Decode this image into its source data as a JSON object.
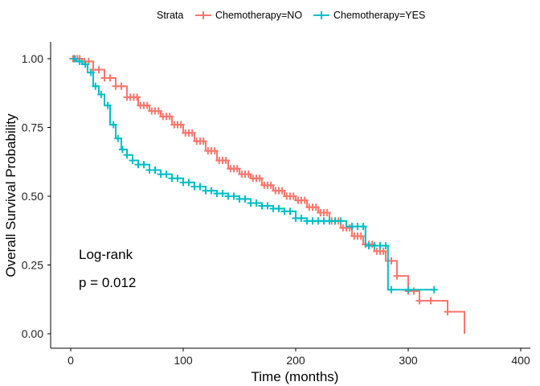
{
  "chart_data": {
    "type": "line",
    "subtype": "kaplan-meier step curve",
    "xlabel": "Time (months)",
    "ylabel": "Overall Survival Probability",
    "xlim": [
      0,
      420
    ],
    "ylim": [
      0,
      1.0
    ],
    "x_ticks": [
      "0",
      "100",
      "200",
      "300",
      "400"
    ],
    "x_tick_values": [
      0,
      100,
      200,
      300,
      400
    ],
    "y_ticks": [
      "0.00",
      "0.25",
      "0.50",
      "0.75",
      "1.00"
    ],
    "y_tick_values": [
      0,
      0.25,
      0.5,
      0.75,
      1.0
    ],
    "grid": false,
    "legend": {
      "title": "Strata",
      "placement": "top",
      "entries": [
        "Chemotherapy=NO",
        "Chemotherapy=YES"
      ]
    },
    "annotations": [
      "Log-rank",
      "p = 0.012"
    ],
    "series": [
      {
        "name": "Chemotherapy=NO",
        "color": "#F8766D",
        "x": [
          0,
          10,
          20,
          30,
          40,
          50,
          60,
          70,
          80,
          90,
          100,
          110,
          120,
          130,
          140,
          150,
          160,
          170,
          180,
          190,
          200,
          210,
          220,
          230,
          240,
          250,
          260,
          270,
          280,
          290,
          300,
          310,
          320,
          335,
          350
        ],
        "y": [
          1.0,
          0.99,
          0.96,
          0.93,
          0.9,
          0.86,
          0.83,
          0.81,
          0.79,
          0.76,
          0.73,
          0.7,
          0.665,
          0.63,
          0.6,
          0.58,
          0.565,
          0.54,
          0.52,
          0.5,
          0.485,
          0.46,
          0.44,
          0.41,
          0.385,
          0.355,
          0.325,
          0.3,
          0.265,
          0.21,
          0.155,
          0.12,
          0.12,
          0.08,
          0.0
        ],
        "censor_x": [
          2,
          4,
          6,
          8,
          12,
          16,
          20,
          25,
          30,
          35,
          40,
          45,
          50,
          53,
          56,
          59,
          62,
          65,
          68,
          72,
          75,
          78,
          82,
          85,
          88,
          92,
          95,
          98,
          102,
          105,
          108,
          112,
          115,
          118,
          122,
          125,
          128,
          132,
          135,
          138,
          142,
          145,
          148,
          152,
          155,
          158,
          162,
          165,
          168,
          172,
          175,
          178,
          182,
          185,
          188,
          192,
          195,
          198,
          202,
          205,
          208,
          212,
          215,
          218,
          222,
          225,
          228,
          232,
          235,
          238,
          242,
          245,
          248,
          252,
          255,
          258,
          262,
          265,
          268,
          272,
          275,
          278,
          285,
          290,
          300,
          305,
          310,
          320,
          335
        ]
      },
      {
        "name": "Chemotherapy=YES",
        "color": "#00BFC4",
        "x": [
          0,
          5,
          10,
          15,
          20,
          25,
          30,
          35,
          40,
          45,
          50,
          55,
          60,
          70,
          80,
          90,
          100,
          110,
          120,
          130,
          140,
          150,
          160,
          170,
          180,
          190,
          200,
          210,
          220,
          240,
          245,
          262,
          282,
          300,
          323
        ],
        "y": [
          1.0,
          0.99,
          0.98,
          0.95,
          0.9,
          0.87,
          0.83,
          0.76,
          0.71,
          0.67,
          0.65,
          0.63,
          0.615,
          0.595,
          0.58,
          0.565,
          0.55,
          0.535,
          0.52,
          0.51,
          0.5,
          0.49,
          0.475,
          0.465,
          0.455,
          0.445,
          0.42,
          0.41,
          0.41,
          0.41,
          0.39,
          0.32,
          0.16,
          0.16,
          0.16
        ],
        "censor_x": [
          3,
          8,
          13,
          18,
          22,
          27,
          33,
          38,
          42,
          46,
          50,
          55,
          60,
          65,
          70,
          75,
          80,
          85,
          90,
          95,
          100,
          105,
          110,
          115,
          120,
          125,
          130,
          135,
          140,
          145,
          150,
          155,
          160,
          165,
          170,
          175,
          180,
          185,
          190,
          195,
          200,
          205,
          210,
          215,
          220,
          225,
          230,
          235,
          240,
          250,
          255,
          260,
          265,
          270,
          275,
          280,
          285,
          300,
          323
        ]
      }
    ]
  }
}
